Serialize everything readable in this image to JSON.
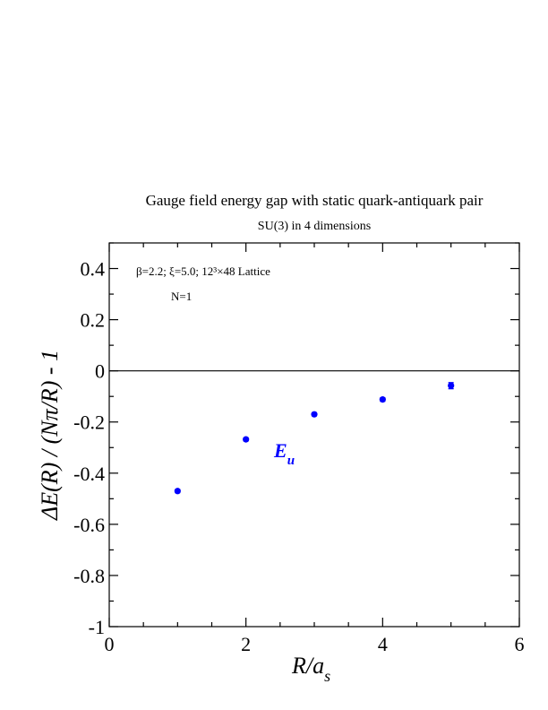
{
  "chart_data": {
    "type": "scatter",
    "title": "Gauge field energy gap with static quark-antiquark pair",
    "subtitle": "SU(3) in 4 dimensions",
    "xlabel": {
      "main": "R/a",
      "sub": "s"
    },
    "ylabel": "ΔE(R) / (Nπ/R) - 1",
    "xlim": [
      0,
      6
    ],
    "ylim": [
      -1,
      0.5
    ],
    "x_ticks": [
      0,
      2,
      4,
      6
    ],
    "x_tick_labels": [
      "0",
      "2",
      "4",
      "6"
    ],
    "y_ticks": [
      -1,
      -0.8,
      -0.6,
      -0.4,
      -0.2,
      0,
      0.2,
      0.4
    ],
    "y_tick_labels": [
      "-1",
      "-0.8",
      "-0.6",
      "-0.4",
      "-0.2",
      "0",
      "0.2",
      "0.4"
    ],
    "zero_line": true,
    "grid": false,
    "annotation_params": "β=2.2;  ξ=5.0;  12³×48 Lattice",
    "annotation_n": "N=1",
    "series_label": {
      "main": "E",
      "sub": "u"
    },
    "marker_color": "#0000ff",
    "x": [
      1,
      2,
      3,
      4,
      5
    ],
    "y": [
      -0.47,
      -0.268,
      -0.17,
      -0.112,
      -0.058
    ],
    "yerr": [
      0.006,
      0.006,
      0.006,
      0.007,
      0.012
    ]
  }
}
